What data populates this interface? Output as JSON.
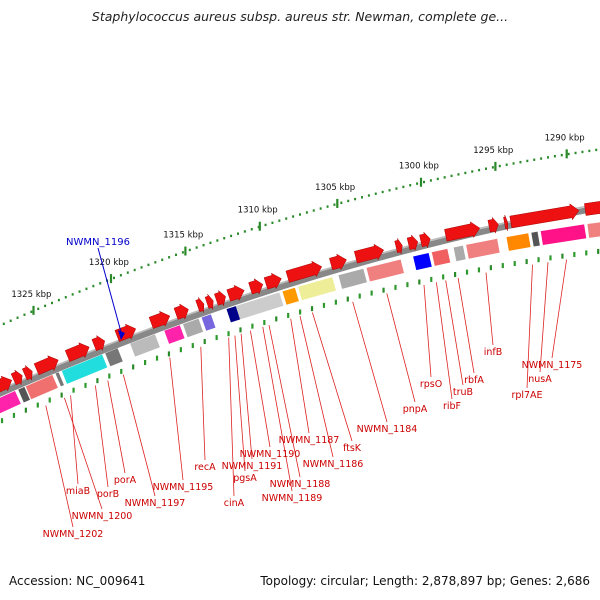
{
  "title": "Staphylococcus aureus subsp. aureus str. Newman, complete ge...",
  "accession": "Accession: NC_009641",
  "summary": "Topology: circular; Length: 2,878,897 bp; Genes: 2,686",
  "scale_labels": [
    "1290 kbp",
    "1295 kbp",
    "1300 kbp",
    "1305 kbp",
    "1310 kbp",
    "1315 kbp",
    "1320 kbp",
    "1325 kbp"
  ],
  "highlight_label": "NWMN_1196",
  "gene_labels": [
    "NWMN_1175",
    "nusA",
    "rpl7AE",
    "infB",
    "rbfA",
    "truB",
    "rpsO",
    "ribF",
    "pnpA",
    "NWMN_1184",
    "ftsK",
    "NWMN_1186",
    "NWMN_1187",
    "NWMN_1188",
    "NWMN_1189",
    "NWMN_1190",
    "NWMN_1191",
    "pgsA",
    "cinA",
    "recA",
    "NWMN_1195",
    "NWMN_1197",
    "porA",
    "porB",
    "miaB",
    "NWMN_1200",
    "NWMN_1202"
  ],
  "colors": {
    "gene_red": "#ee1111",
    "label_red": "#cc0000",
    "highlight_blue": "#0000cc",
    "tick_green": "#2a8a2a",
    "backbone": "#888888"
  }
}
